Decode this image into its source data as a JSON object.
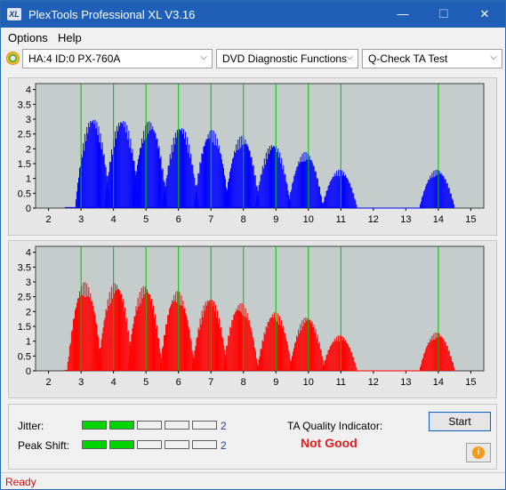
{
  "window": {
    "title": "PlexTools Professional XL V3.16",
    "app_icon_text": "XL"
  },
  "titlebar_buttons": {
    "minimize": "—",
    "maximize": "☐",
    "close": "✕"
  },
  "menu": {
    "options": "Options",
    "help": "Help"
  },
  "toolbar": {
    "drive": "HA:4 ID:0  PX-760A",
    "function": "DVD Diagnostic Functions",
    "test": "Q-Check TA Test"
  },
  "chart_data": [
    {
      "type": "bar",
      "name": "",
      "color": "#0000ff",
      "background": "#c4cccc",
      "x_ticks": [
        2,
        3,
        4,
        5,
        6,
        7,
        8,
        9,
        10,
        11,
        12,
        13,
        14,
        15
      ],
      "y_ticks": [
        0,
        0.5,
        1,
        1.5,
        2,
        2.5,
        3,
        3.5,
        4
      ],
      "ylim": [
        0,
        4.2
      ],
      "xlim": [
        1.6,
        15.4
      ],
      "green_gridlines": [
        3,
        4,
        5,
        6,
        7,
        8,
        9,
        10,
        11,
        14
      ],
      "peaks": [
        {
          "x": 3.35,
          "height": 3.1
        },
        {
          "x": 4.25,
          "height": 3.05
        },
        {
          "x": 5.1,
          "height": 2.95
        },
        {
          "x": 6.05,
          "height": 2.8
        },
        {
          "x": 7.0,
          "height": 2.65
        },
        {
          "x": 7.95,
          "height": 2.45
        },
        {
          "x": 8.9,
          "height": 2.2
        },
        {
          "x": 9.9,
          "height": 1.9
        },
        {
          "x": 10.95,
          "height": 1.3
        },
        {
          "x": 13.95,
          "height": 1.3
        }
      ]
    },
    {
      "type": "bar",
      "name": "",
      "color": "#ff0000",
      "background": "#c4cccc",
      "x_ticks": [
        2,
        3,
        4,
        5,
        6,
        7,
        8,
        9,
        10,
        11,
        12,
        13,
        14,
        15
      ],
      "y_ticks": [
        0,
        0.5,
        1,
        1.5,
        2,
        2.5,
        3,
        3.5,
        4
      ],
      "ylim": [
        0,
        4.2
      ],
      "xlim": [
        1.6,
        15.4
      ],
      "green_gridlines": [
        3,
        4,
        5,
        6,
        7,
        8,
        9,
        10,
        11,
        14
      ],
      "peaks": [
        {
          "x": 3.1,
          "height": 3.0
        },
        {
          "x": 4.05,
          "height": 3.0
        },
        {
          "x": 4.95,
          "height": 2.9
        },
        {
          "x": 5.95,
          "height": 2.7
        },
        {
          "x": 6.95,
          "height": 2.5
        },
        {
          "x": 7.9,
          "height": 2.3
        },
        {
          "x": 8.95,
          "height": 2.0
        },
        {
          "x": 9.95,
          "height": 1.85
        },
        {
          "x": 10.95,
          "height": 1.2
        },
        {
          "x": 13.95,
          "height": 1.3
        }
      ]
    }
  ],
  "metrics": {
    "jitter_label": "Jitter:",
    "jitter_value": "2",
    "jitter_level": 2,
    "peak_shift_label": "Peak Shift:",
    "peak_shift_value": "2",
    "peak_shift_level": 2,
    "segments_total": 5
  },
  "ta_quality": {
    "label": "TA Quality Indicator:",
    "value": "Not Good"
  },
  "buttons": {
    "start": "Start",
    "info": "i"
  },
  "status": {
    "text": "Ready"
  }
}
